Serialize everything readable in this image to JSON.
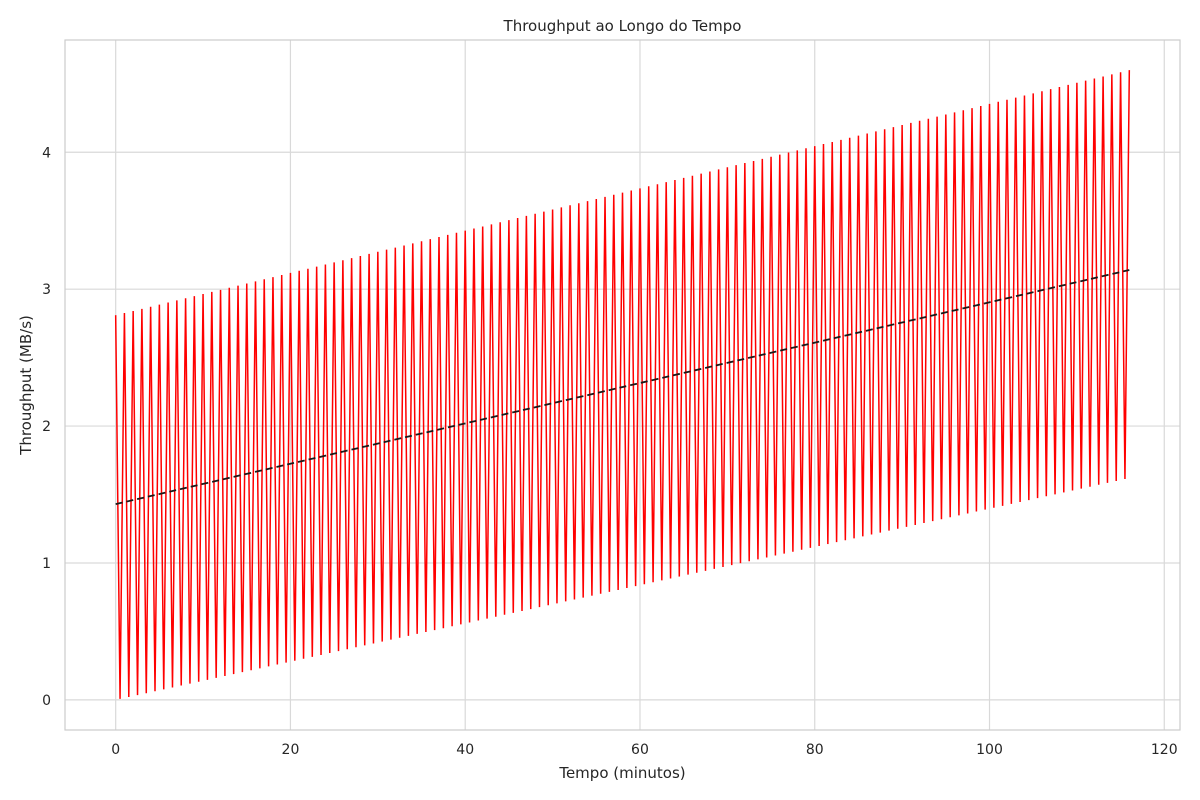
{
  "chart_data": {
    "type": "line",
    "title": "Throughput ao Longo do Tempo",
    "xlabel": "Tempo (minutos)",
    "ylabel": "Throughput (MB/s)",
    "xlim": [
      -5.8,
      121.8
    ],
    "ylim": [
      -0.22,
      4.82
    ],
    "x_ticks": [
      0,
      20,
      40,
      60,
      80,
      100,
      120
    ],
    "y_ticks": [
      0,
      1,
      2,
      3,
      4
    ],
    "grid": true,
    "legend": "none",
    "series": [
      {
        "style": "solid",
        "color": "#ff0000",
        "pattern": "oscillating",
        "x_start": 0,
        "x_end": 116,
        "x_step": 0.5,
        "upper_envelope": [
          [
            0,
            2.81
          ],
          [
            116,
            4.6
          ]
        ],
        "lower_envelope": [
          [
            0,
            0.0
          ],
          [
            116,
            1.62
          ]
        ]
      },
      {
        "style": "dashed",
        "color": "#1a1a1a",
        "pattern": "trend",
        "points": [
          [
            0,
            1.43
          ],
          [
            116,
            3.14
          ]
        ]
      }
    ]
  },
  "colors": {
    "grid": "#d9d9d9",
    "spine": "#cccccc",
    "signal": "#ff0000",
    "trend": "#1a1a1a"
  }
}
